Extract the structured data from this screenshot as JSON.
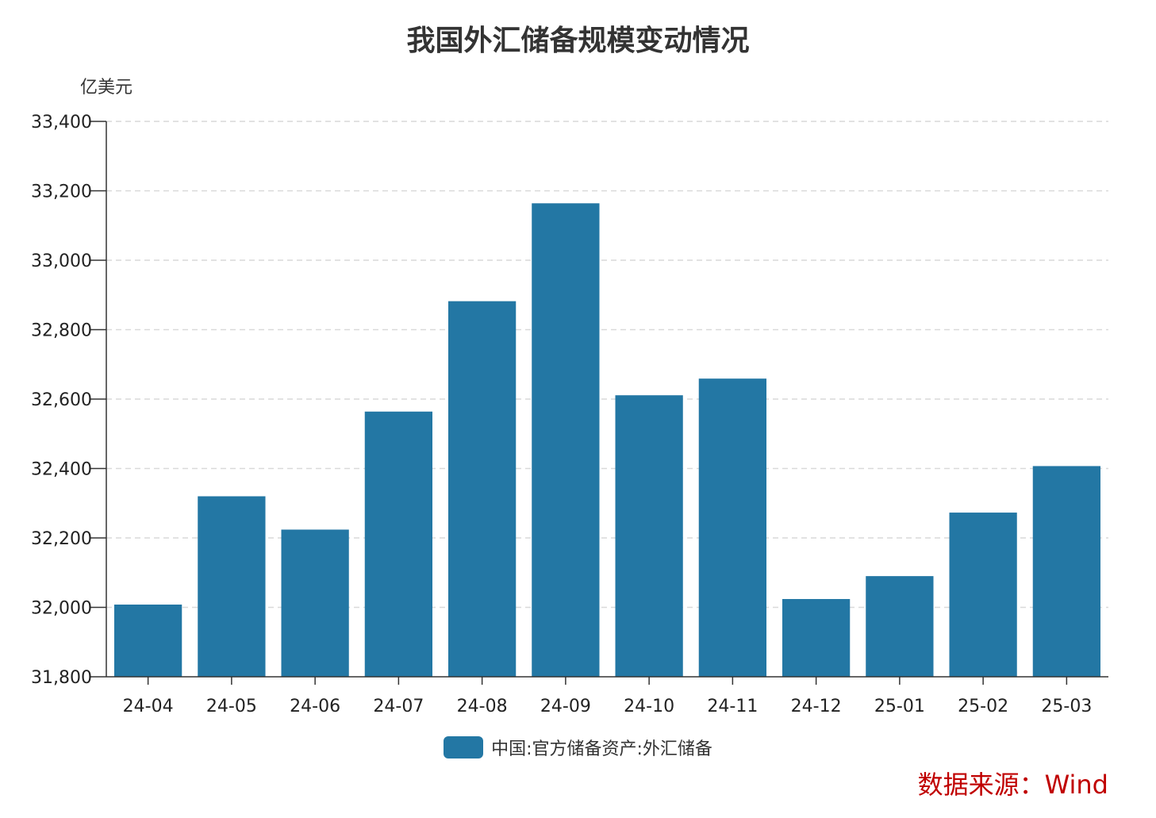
{
  "chart_data": {
    "type": "bar",
    "title": "我国外汇储备规模变动情况",
    "ylabel": "亿美元",
    "xlabel": "",
    "categories": [
      "24-04",
      "24-05",
      "24-06",
      "24-07",
      "24-08",
      "24-09",
      "24-10",
      "24-11",
      "24-12",
      "25-01",
      "25-02",
      "25-03"
    ],
    "series": [
      {
        "name": "中国:官方储备资产:外汇储备",
        "values": [
          32008,
          32320,
          32224,
          32564,
          32882,
          33164,
          32611,
          32659,
          32024,
          32090,
          32273,
          32407
        ]
      }
    ],
    "ylim": [
      31800,
      33400
    ],
    "yticks": [
      "31,800",
      "32,000",
      "32,200",
      "32,400",
      "32,600",
      "32,800",
      "33,000",
      "33,200",
      "33,400"
    ],
    "grid": true,
    "legend_position": "bottom-center",
    "colors": {
      "bar": "#2377a4",
      "grid": "#d9d9d9",
      "axis": "#333333",
      "source": "#c00000"
    }
  },
  "source_note": "数据来源：Wind"
}
